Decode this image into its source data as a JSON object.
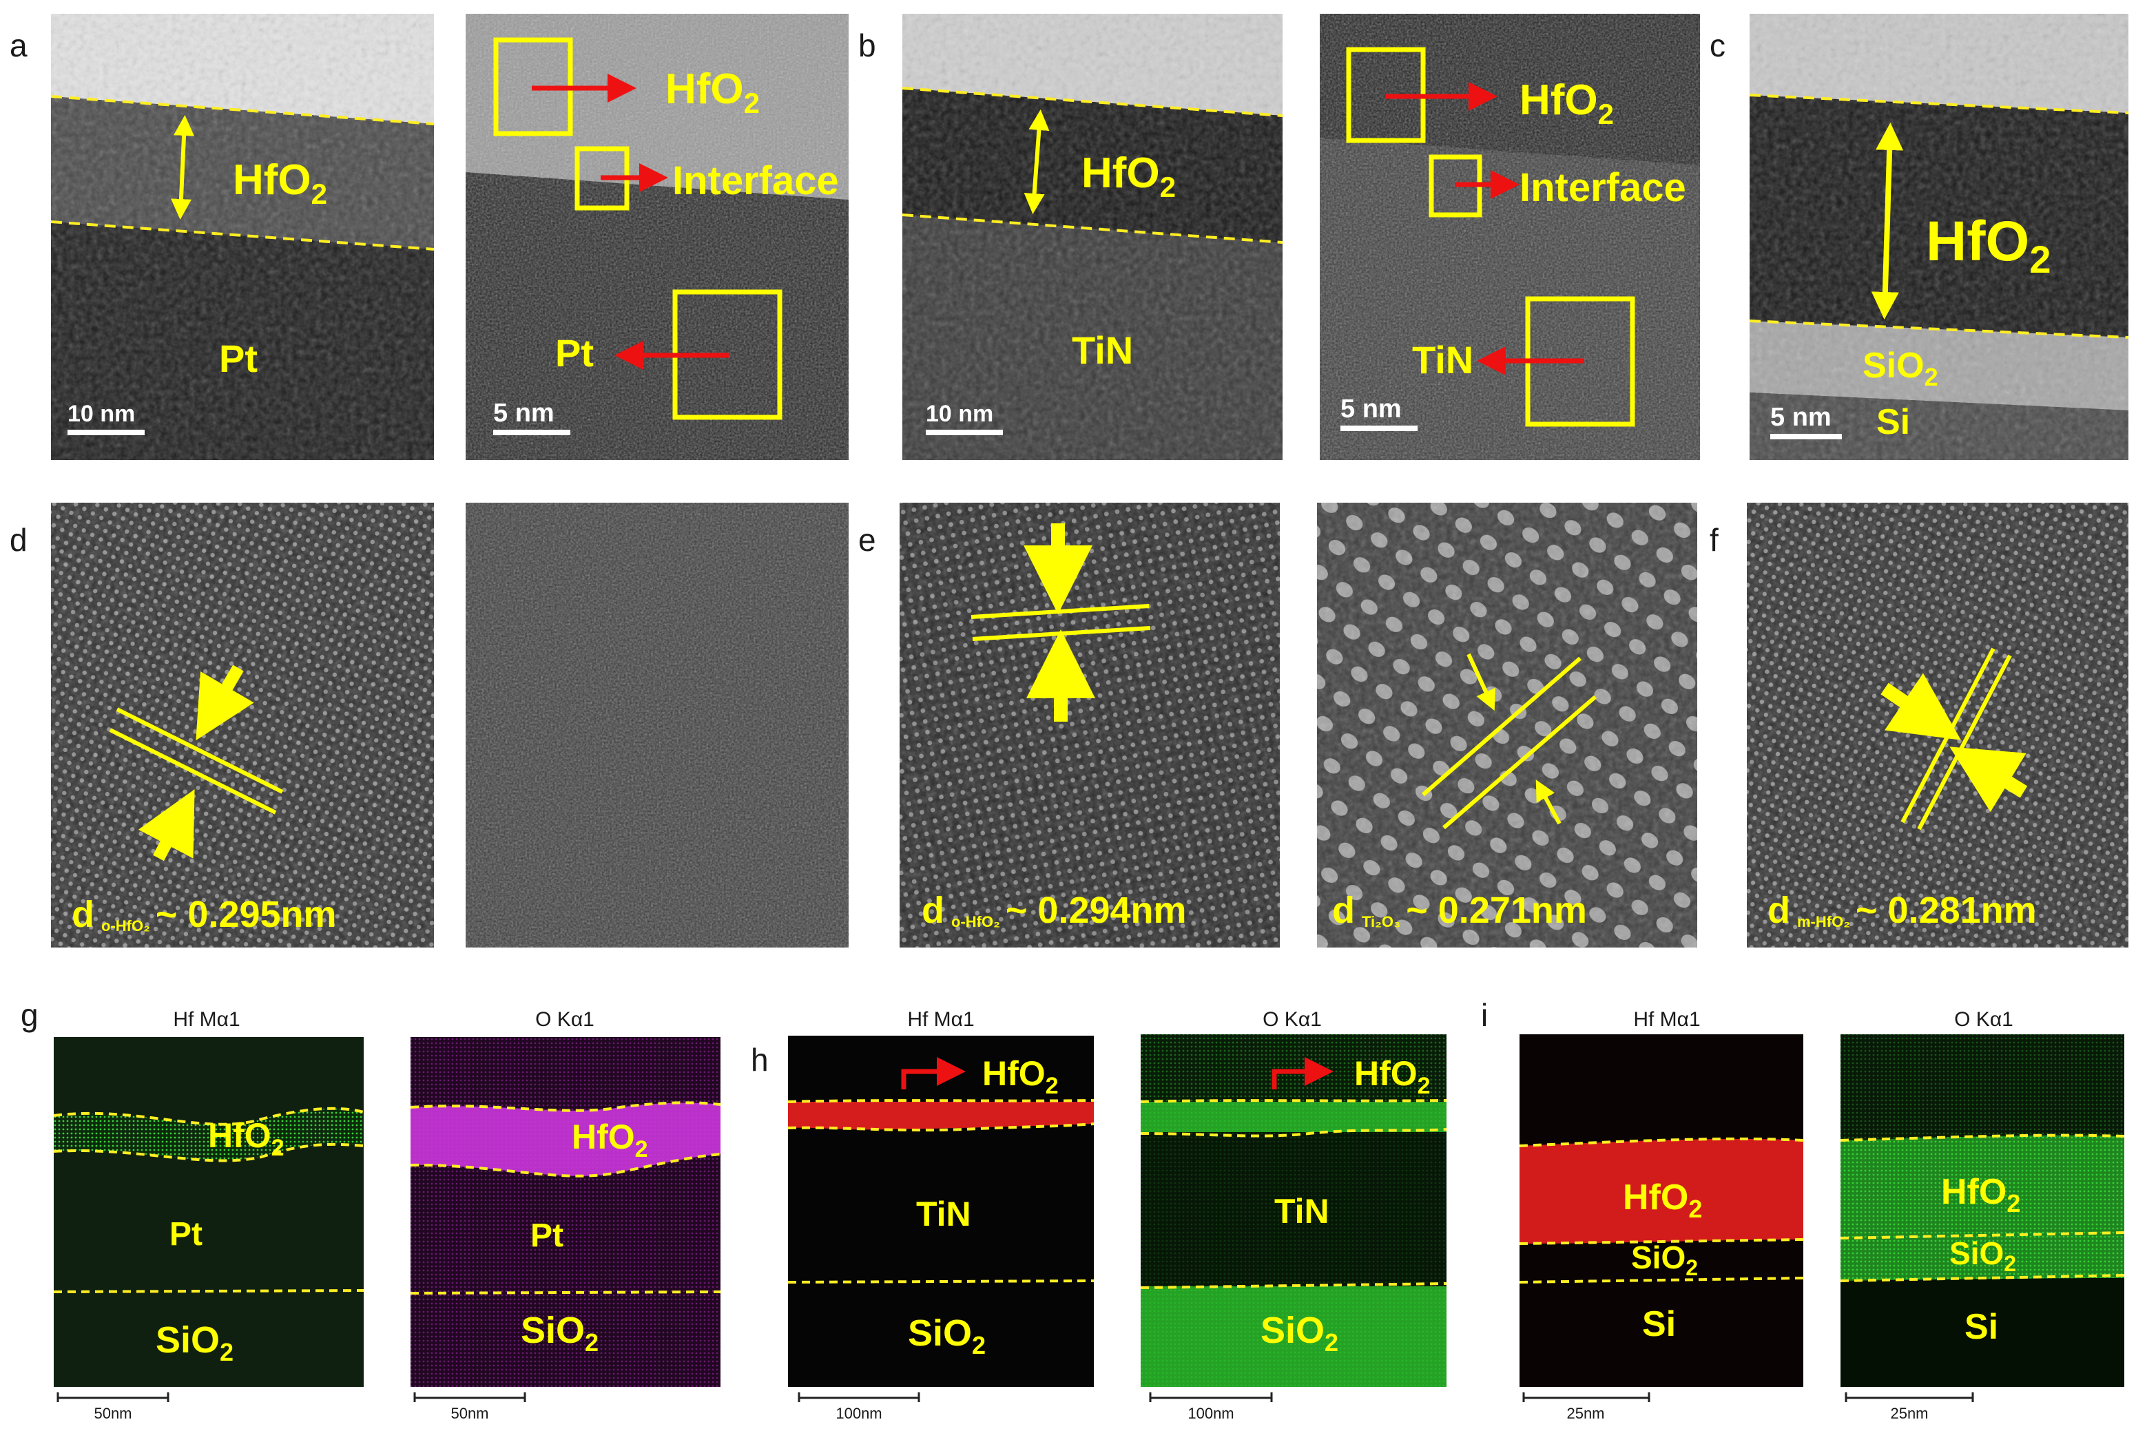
{
  "figure": {
    "panel_labels": {
      "a": "a",
      "b": "b",
      "c": "c",
      "d": "d",
      "e": "e",
      "f": "f",
      "g": "g",
      "h": "h",
      "i": "i"
    },
    "tem": {
      "a_overview": {
        "layer_top": "HfO",
        "layer_top_sub": "2",
        "electrode": "Pt",
        "scale": "10 nm"
      },
      "a_zoom": {
        "hfo2": "HfO",
        "hfo2_sub": "2",
        "interface": "Interface",
        "electrode": "Pt",
        "scale": "5 nm"
      },
      "b_overview": {
        "layer_top": "HfO",
        "layer_top_sub": "2",
        "electrode": "TiN",
        "scale": "10 nm"
      },
      "b_zoom": {
        "hfo2": "HfO",
        "hfo2_sub": "2",
        "interface": "Interface",
        "electrode": "TiN",
        "scale": "5 nm"
      },
      "c_overview": {
        "layer_top": "HfO",
        "layer_top_sub": "2",
        "oxide": "SiO",
        "oxide_sub": "2",
        "substrate": "Si",
        "scale": "5 nm"
      }
    },
    "hrtem": {
      "d": {
        "prefix": "d",
        "sub": "o-HfO₂",
        "value": "~ 0.295nm"
      },
      "e": {
        "prefix": "d",
        "sub": "o-HfO₂",
        "value": "~ 0.294nm"
      },
      "e2": {
        "prefix": "d",
        "sub": "Ti₂O₃",
        "value": "~ 0.271nm"
      },
      "f": {
        "prefix": "d",
        "sub": "m-HfO₂",
        "value": "~ 0.281nm"
      }
    },
    "eds": {
      "g": {
        "map1_title": "Hf Mα1",
        "map2_title": "O Kα1",
        "hfo2": "HfO",
        "hfo2_sub": "2",
        "electrode": "Pt",
        "substrate": "SiO",
        "substrate_sub": "2",
        "scale": "50nm",
        "colors": {
          "map1": "#22ee22",
          "map2": "#dd33ee"
        }
      },
      "h": {
        "map1_title": "Hf Mα1",
        "map2_title": "O Kα1",
        "hfo2": "HfO",
        "hfo2_sub": "2",
        "electrode": "TiN",
        "substrate": "SiO",
        "substrate_sub": "2",
        "scale": "100nm",
        "colors": {
          "map1": "#e02020",
          "map2": "#22ee22"
        }
      },
      "i": {
        "map1_title": "Hf Mα1",
        "map2_title": "O Kα1",
        "hfo2": "HfO",
        "hfo2_sub": "2",
        "oxide": "SiO",
        "oxide_sub": "2",
        "substrate": "Si",
        "scale": "25nm",
        "colors": {
          "map1": "#e02020",
          "map2": "#22ee22"
        }
      }
    },
    "colors": {
      "label_yellow": "#ffff00",
      "arrow_red": "#ee1111",
      "dashed_yellow": "#ffee22"
    }
  }
}
